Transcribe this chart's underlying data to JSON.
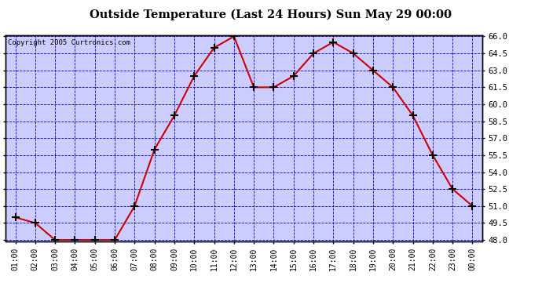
{
  "title": "Outside Temperature (Last 24 Hours) Sun May 29 00:00",
  "copyright": "Copyright 2005 Curtronics.com",
  "x_labels": [
    "01:00",
    "02:00",
    "03:00",
    "04:00",
    "05:00",
    "06:00",
    "07:00",
    "08:00",
    "09:00",
    "10:00",
    "11:00",
    "12:00",
    "13:00",
    "14:00",
    "15:00",
    "16:00",
    "17:00",
    "18:00",
    "19:00",
    "20:00",
    "21:00",
    "22:00",
    "23:00",
    "00:00"
  ],
  "y_values": [
    50.0,
    49.5,
    48.0,
    48.0,
    48.0,
    48.0,
    51.0,
    56.0,
    59.0,
    62.5,
    65.0,
    66.0,
    61.5,
    61.5,
    62.5,
    64.5,
    65.5,
    64.5,
    63.0,
    61.5,
    59.0,
    55.5,
    52.5,
    51.0
  ],
  "line_color": "#cc0000",
  "marker_color": "#000000",
  "bg_color": "#ffffff",
  "plot_bg_color": "#ccccff",
  "grid_color": "#0000cc",
  "border_color": "#000000",
  "title_color": "#000000",
  "copyright_color": "#000000",
  "y_min": 48.0,
  "y_max": 66.0,
  "y_ticks": [
    48.0,
    49.5,
    51.0,
    52.5,
    54.0,
    55.5,
    57.0,
    58.5,
    60.0,
    61.5,
    63.0,
    64.5,
    66.0
  ]
}
